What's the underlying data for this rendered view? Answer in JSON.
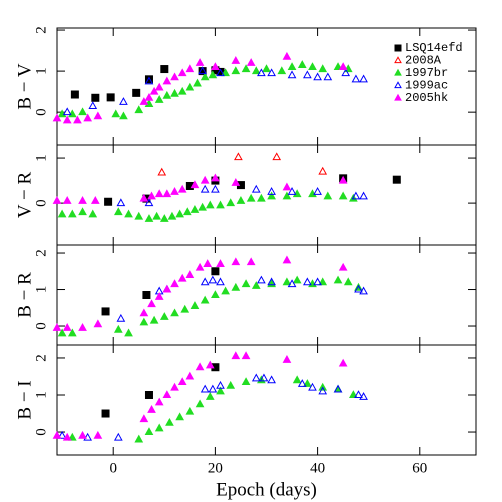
{
  "chart_data": [
    {
      "type": "scatter",
      "ylabel": "B − V",
      "xlim": [
        -11,
        71
      ],
      "xticks": [
        0,
        20,
        40,
        60
      ],
      "ylim": [
        -0.8,
        2.05
      ],
      "yticks": [
        0,
        1,
        2
      ],
      "legend": "upper right",
      "series": [
        {
          "name": "LSQ14efd",
          "color": "#000000",
          "marker": "square",
          "filled": true,
          "x": [
            -7.5,
            -3.5,
            -0.5,
            4.5,
            7,
            10,
            17.5,
            20,
            21
          ],
          "values": [
            0.43,
            0.35,
            0.36,
            0.47,
            0.8,
            1.05,
            1.0,
            1.02,
            0.98
          ]
        },
        {
          "name": "2008A",
          "color": "#ff0000",
          "marker": "triangle",
          "filled": false,
          "x": [],
          "values": []
        },
        {
          "name": "1997br",
          "color": "#22dd22",
          "marker": "triangle",
          "filled": true,
          "x": [
            -10,
            -8,
            -6,
            0.5,
            2,
            5,
            7,
            9,
            10.5,
            12,
            13.5,
            15,
            16.5,
            18,
            19.5,
            22,
            24,
            26,
            28,
            30,
            33,
            35,
            37,
            39,
            41,
            44,
            46
          ],
          "values": [
            -0.05,
            -0.05,
            0.0,
            -0.05,
            -0.1,
            0.05,
            0.2,
            0.3,
            0.4,
            0.45,
            0.5,
            0.6,
            0.7,
            0.85,
            0.9,
            0.95,
            1.0,
            1.05,
            1.0,
            1.05,
            1.0,
            1.1,
            1.15,
            1.1,
            1.05,
            1.1,
            1.05
          ]
        },
        {
          "name": "1999ac",
          "color": "#0000ff",
          "marker": "triangle",
          "filled": false,
          "x": [
            -9,
            -4,
            2,
            7,
            17.5,
            21,
            29,
            31,
            35,
            38,
            40,
            42,
            45.5,
            47.5,
            49
          ],
          "values": [
            0.0,
            0.15,
            0.25,
            0.75,
            1.0,
            0.95,
            0.95,
            0.95,
            0.9,
            0.9,
            0.85,
            0.85,
            0.95,
            0.8,
            0.8
          ]
        },
        {
          "name": "2005hk",
          "color": "#ff00ff",
          "marker": "triangle",
          "filled": true,
          "x": [
            -11,
            -9,
            -7,
            -5,
            -3,
            6,
            7,
            8,
            9,
            10.5,
            12,
            13.5,
            15,
            17,
            20,
            24,
            27,
            34,
            45
          ],
          "values": [
            -0.15,
            -0.2,
            -0.2,
            -0.15,
            -0.1,
            0.25,
            0.35,
            0.5,
            0.6,
            0.75,
            0.85,
            0.95,
            1.05,
            1.2,
            1.1,
            1.25,
            1.2,
            1.35,
            1.1
          ]
        }
      ]
    },
    {
      "type": "scatter",
      "ylabel": "V − R",
      "xlim": [
        -11,
        71
      ],
      "xticks": [
        0,
        20,
        40,
        60
      ],
      "ylim": [
        -0.93,
        1.29
      ],
      "yticks": [
        0,
        1
      ],
      "series": [
        {
          "color": "#000000",
          "marker": "square",
          "filled": true,
          "x": [
            -1,
            6.5,
            15,
            20,
            25,
            45,
            55.5
          ],
          "values": [
            0.03,
            0.1,
            0.38,
            0.5,
            0.4,
            0.55,
            0.52
          ]
        },
        {
          "color": "#ff0000",
          "marker": "triangle",
          "filled": false,
          "x": [
            9.5,
            24.5,
            32,
            41
          ],
          "values": [
            0.68,
            1.02,
            1.02,
            0.7
          ]
        },
        {
          "color": "#22dd22",
          "marker": "triangle",
          "filled": true,
          "x": [
            -10,
            -8,
            -6,
            -4,
            1,
            3,
            5,
            7,
            8.5,
            10,
            11.5,
            13,
            14.5,
            16,
            17.5,
            19,
            21,
            23,
            25,
            27,
            29,
            31,
            34,
            36,
            39,
            42,
            45,
            47
          ],
          "values": [
            -0.25,
            -0.25,
            -0.2,
            -0.25,
            -0.2,
            -0.25,
            -0.3,
            -0.35,
            -0.3,
            -0.35,
            -0.3,
            -0.25,
            -0.2,
            -0.15,
            -0.1,
            -0.05,
            -0.05,
            0.0,
            0.05,
            0.1,
            0.1,
            0.15,
            0.15,
            0.2,
            0.2,
            0.15,
            0.15,
            0.1
          ]
        },
        {
          "color": "#0000ff",
          "marker": "triangle",
          "filled": false,
          "x": [
            1.5,
            7,
            18,
            20,
            28,
            31,
            35,
            40,
            47.5,
            49
          ],
          "values": [
            0.0,
            0.0,
            0.3,
            0.3,
            0.3,
            0.25,
            0.25,
            0.25,
            0.15,
            0.15
          ]
        },
        {
          "color": "#ff00ff",
          "marker": "triangle",
          "filled": true,
          "x": [
            -11,
            -9,
            -6,
            -3.5,
            6,
            7.5,
            9,
            10.5,
            12,
            13.5,
            16,
            18,
            20,
            24,
            34,
            45
          ],
          "values": [
            0.05,
            0.05,
            0.05,
            0.05,
            0.1,
            0.15,
            0.2,
            0.2,
            0.25,
            0.3,
            0.4,
            0.5,
            0.55,
            0.45,
            0.35,
            0.5
          ]
        }
      ]
    },
    {
      "type": "scatter",
      "ylabel": "B − R",
      "xlim": [
        -11,
        71
      ],
      "xticks": [
        0,
        20,
        40,
        60
      ],
      "ylim": [
        -0.52,
        2.22
      ],
      "yticks": [
        0,
        1,
        2
      ],
      "series": [
        {
          "color": "#000000",
          "marker": "square",
          "filled": true,
          "x": [
            -1.5,
            6.5,
            20
          ],
          "values": [
            0.4,
            0.85,
            1.5
          ]
        },
        {
          "color": "#ff0000",
          "marker": "triangle",
          "filled": false,
          "x": [],
          "values": []
        },
        {
          "color": "#22dd22",
          "marker": "triangle",
          "filled": true,
          "x": [
            -10,
            -8,
            1,
            3,
            6,
            8,
            10,
            12,
            14,
            16,
            18,
            20,
            22,
            24,
            26,
            28,
            31,
            34,
            36,
            39,
            41,
            44,
            46,
            48
          ],
          "values": [
            -0.2,
            -0.2,
            -0.1,
            -0.2,
            0.1,
            0.15,
            0.25,
            0.35,
            0.45,
            0.55,
            0.7,
            0.85,
            0.95,
            1.05,
            1.15,
            1.1,
            1.15,
            1.2,
            1.25,
            1.15,
            1.2,
            1.25,
            1.2,
            1.05
          ]
        },
        {
          "color": "#0000ff",
          "marker": "triangle",
          "filled": false,
          "x": [
            1.5,
            9,
            10.5,
            18,
            19.5,
            21,
            29,
            31,
            35,
            38,
            40,
            48,
            49
          ],
          "values": [
            0.2,
            0.95,
            1.0,
            1.2,
            1.25,
            1.2,
            1.25,
            1.2,
            1.15,
            1.2,
            1.2,
            1.0,
            0.95
          ]
        },
        {
          "color": "#ff00ff",
          "marker": "triangle",
          "filled": true,
          "x": [
            -11,
            -9,
            -6,
            -3,
            6,
            7.5,
            9,
            10.5,
            12,
            13.5,
            15,
            17,
            18.5,
            21,
            24,
            27,
            34,
            45
          ],
          "values": [
            -0.05,
            -0.05,
            -0.05,
            0.05,
            0.35,
            0.6,
            0.8,
            1.0,
            1.15,
            1.3,
            1.4,
            1.6,
            1.7,
            1.7,
            1.75,
            1.75,
            1.8,
            1.6
          ]
        }
      ]
    },
    {
      "type": "scatter",
      "ylabel": "B − I",
      "xlabel": "Epoch (days)",
      "xlim": [
        -11,
        71
      ],
      "xticks": [
        0,
        20,
        40,
        60
      ],
      "ylim": [
        -0.62,
        2.35
      ],
      "yticks": [
        0,
        1,
        2
      ],
      "series": [
        {
          "color": "#000000",
          "marker": "square",
          "filled": true,
          "x": [
            -1.5,
            7,
            20
          ],
          "values": [
            0.5,
            1.0,
            1.75
          ]
        },
        {
          "color": "#ff0000",
          "marker": "triangle",
          "filled": false,
          "x": [],
          "values": []
        },
        {
          "color": "#22dd22",
          "marker": "triangle",
          "filled": true,
          "x": [
            -8,
            5,
            7,
            9,
            11,
            13,
            15,
            17,
            19,
            21,
            23,
            26,
            29,
            36,
            38,
            41,
            44,
            47
          ],
          "values": [
            -0.15,
            -0.2,
            0.0,
            0.1,
            0.25,
            0.4,
            0.55,
            0.75,
            0.95,
            1.1,
            1.25,
            1.35,
            1.4,
            1.4,
            1.3,
            1.2,
            1.15,
            1.0
          ]
        },
        {
          "color": "#0000ff",
          "marker": "triangle",
          "filled": false,
          "x": [
            -10,
            -5,
            1,
            18,
            19.5,
            21,
            28,
            29.5,
            31,
            37,
            39,
            41,
            44,
            48,
            49
          ],
          "values": [
            -0.1,
            -0.15,
            -0.15,
            1.15,
            1.15,
            1.25,
            1.45,
            1.45,
            1.4,
            1.3,
            1.2,
            1.1,
            1.15,
            1.0,
            0.95
          ]
        },
        {
          "color": "#ff00ff",
          "marker": "triangle",
          "filled": true,
          "x": [
            -11,
            -9,
            -6,
            -3,
            6,
            7.5,
            9,
            10.5,
            12,
            13.5,
            15,
            17,
            19,
            24,
            26,
            34,
            45
          ],
          "values": [
            -0.1,
            -0.15,
            -0.1,
            -0.1,
            0.35,
            0.6,
            0.8,
            1.0,
            1.2,
            1.35,
            1.5,
            1.75,
            1.8,
            2.05,
            2.05,
            1.95,
            1.85
          ]
        }
      ]
    }
  ]
}
